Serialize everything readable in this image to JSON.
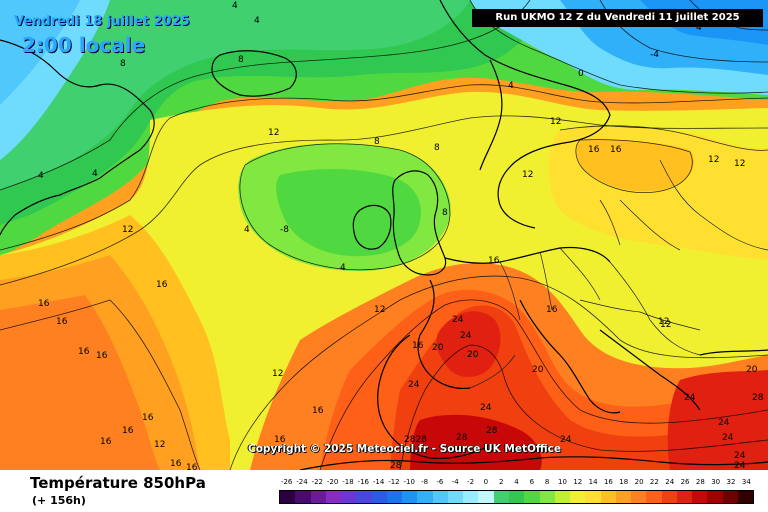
{
  "header": {
    "date": "Vendredi 18 juillet 2025",
    "time": "2:00 locale",
    "run": "Run UKMO 12 Z du Vendredi 11 juillet 2025"
  },
  "copyright": "Copyright © 2025 Meteociel.fr - Source UK MetOffice",
  "footer": {
    "parameter": "Température 850hPa",
    "lead_time": "(+ 156h)"
  },
  "legend": {
    "values": [
      "-26",
      "-24",
      "-22",
      "-20",
      "-18",
      "-16",
      "-14",
      "-12",
      "-10",
      "-8",
      "-6",
      "-4",
      "-2",
      "0",
      "2",
      "4",
      "6",
      "8",
      "10",
      "12",
      "14",
      "16",
      "18",
      "20",
      "22",
      "24",
      "26",
      "28",
      "30",
      "32",
      "34"
    ],
    "colors": [
      "#2b0040",
      "#4a0a70",
      "#6a1a9a",
      "#8a2ac4",
      "#6a36d8",
      "#4a46e0",
      "#2a5ae8",
      "#1a74f0",
      "#1a94f5",
      "#30b0f8",
      "#50c8fb",
      "#70dcfd",
      "#98ecfe",
      "#c0f8ff",
      "#40d070",
      "#30c850",
      "#50d840",
      "#80e840",
      "#c0f030",
      "#f0f030",
      "#ffe030",
      "#ffc020",
      "#ffa020",
      "#ff8020",
      "#ff6018",
      "#f04010",
      "#e02010",
      "#c80808",
      "#a00000",
      "#700000",
      "#300000"
    ]
  },
  "colors": {
    "title_blue": "#2aa8ff",
    "coastline": "#000000",
    "country_border": "#202020",
    "isotherm": "#000000"
  },
  "isotherm_labels": [
    {
      "text": "4",
      "id": "label-4-a"
    },
    {
      "text": "4",
      "id": "label-4-b"
    },
    {
      "text": "8",
      "id": "label-8-a"
    },
    {
      "text": "8",
      "id": "label-8-b"
    },
    {
      "text": "4",
      "id": "label-4-c"
    },
    {
      "text": "4",
      "id": "label-4-d"
    },
    {
      "text": "4",
      "id": "label-4-e"
    },
    {
      "text": "0",
      "id": "label-0-a"
    },
    {
      "text": "-4",
      "id": "label-m4-a"
    },
    {
      "text": "4",
      "id": "label-4-f"
    },
    {
      "text": "12",
      "id": "label-12-a"
    },
    {
      "text": "8",
      "id": "label-8-c"
    },
    {
      "text": "8",
      "id": "label-8-d"
    },
    {
      "text": "12",
      "id": "label-12-b"
    },
    {
      "text": "16",
      "id": "label-16-a"
    },
    {
      "text": "16",
      "id": "label-16-b"
    },
    {
      "text": "12",
      "id": "label-12-c"
    },
    {
      "text": "12",
      "id": "label-12-d"
    },
    {
      "text": "12",
      "id": "label-12-e"
    },
    {
      "text": "4",
      "id": "label-4-g"
    },
    {
      "text": "-8",
      "id": "label-m8-a"
    },
    {
      "text": "4",
      "id": "label-4-h"
    },
    {
      "text": "8",
      "id": "label-8-e"
    },
    {
      "text": "12",
      "id": "label-12-f"
    },
    {
      "text": "16",
      "id": "label-16-c"
    },
    {
      "text": "16",
      "id": "label-16-d"
    },
    {
      "text": "16",
      "id": "label-16-e"
    },
    {
      "text": "16",
      "id": "label-16-f"
    },
    {
      "text": "16",
      "id": "label-16-g"
    },
    {
      "text": "16",
      "id": "label-16-h"
    },
    {
      "text": "12",
      "id": "label-12-g"
    },
    {
      "text": "16",
      "id": "label-16-i"
    },
    {
      "text": "20",
      "id": "label-20-a"
    },
    {
      "text": "24",
      "id": "label-24-a"
    },
    {
      "text": "24",
      "id": "label-24-b"
    },
    {
      "text": "20",
      "id": "label-20-b"
    },
    {
      "text": "20",
      "id": "label-20-c"
    },
    {
      "text": "16",
      "id": "label-16-j"
    },
    {
      "text": "12",
      "id": "label-12-h"
    },
    {
      "text": "12",
      "id": "label-12-i"
    },
    {
      "text": "16",
      "id": "label-16-k"
    },
    {
      "text": "16",
      "id": "label-16-l"
    },
    {
      "text": "16",
      "id": "label-16-m"
    },
    {
      "text": "12",
      "id": "label-12-j"
    },
    {
      "text": "16",
      "id": "label-16-n"
    },
    {
      "text": "16",
      "id": "label-16-o"
    },
    {
      "text": "16",
      "id": "label-16-p"
    },
    {
      "text": "2828",
      "id": "label-2828"
    },
    {
      "text": "28",
      "id": "label-28-a"
    },
    {
      "text": "28",
      "id": "label-28-b"
    },
    {
      "text": "24",
      "id": "label-24-c"
    },
    {
      "text": "24",
      "id": "label-24-d"
    },
    {
      "text": "24",
      "id": "label-24-e"
    },
    {
      "text": "24",
      "id": "label-24-f"
    },
    {
      "text": "24",
      "id": "label-24-g"
    },
    {
      "text": "28",
      "id": "label-28-c"
    },
    {
      "text": "20",
      "id": "label-20-d"
    },
    {
      "text": "24",
      "id": "label-24-h"
    },
    {
      "text": "24",
      "id": "label-24-i"
    },
    {
      "text": "28",
      "id": "label-28-d"
    },
    {
      "text": "12",
      "id": "label-12-k"
    },
    {
      "text": "16",
      "id": "label-16-q"
    },
    {
      "text": "24",
      "id": "label-24-j"
    }
  ]
}
